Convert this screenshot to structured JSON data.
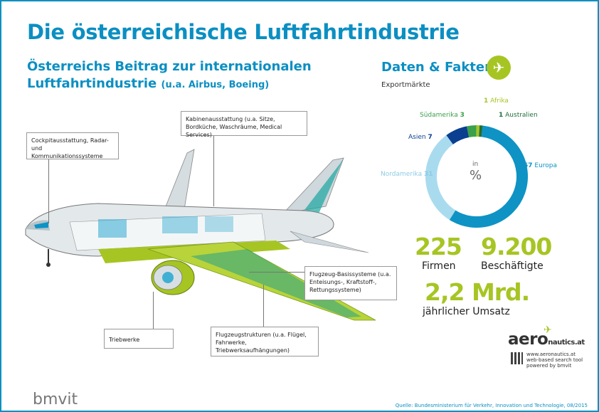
{
  "title": "Die österreichische Luftfahrtindustrie",
  "subtitle": {
    "line1": "Österreichs Beitrag zur internationalen",
    "line2": "Luftfahrtindustrie",
    "note": "(u.a. Airbus, Boeing)"
  },
  "callouts": {
    "kabine": "Kabinenausstattung (u.a. Sitze, Bordküche, Waschräume, Medical Services)",
    "cockpit": "Cockpitausstattung, Radar- und Kommunikationssysteme",
    "basis": "Flugzeug-Basissysteme (u.a. Enteisungs-, Kraftstoff-, Rettungssysteme)",
    "triebwerke": "Triebwerke",
    "strukturen": "Flugzeugstrukturen (u.a. Flügel, Fahrwerke, Triebwerksaufhängungen)"
  },
  "facts": {
    "title": "Daten & Fakten",
    "plane_icon": "plane-icon",
    "export_label": "Exportmärkte"
  },
  "chart_data": {
    "type": "pie",
    "center_label_top": "in",
    "center_label": "%",
    "segments": [
      {
        "name": "Europa",
        "value": 57,
        "color": "#0e93c4"
      },
      {
        "name": "Nordamerika",
        "value": 31,
        "color": "#a9dbef"
      },
      {
        "name": "Asien",
        "value": 7,
        "color": "#0b3f8f"
      },
      {
        "name": "Südamerika",
        "value": 3,
        "color": "#3aa04a"
      },
      {
        "name": "Afrika",
        "value": 1,
        "color": "#a6c523"
      },
      {
        "name": "Australien",
        "value": 1,
        "color": "#1f6e3a"
      }
    ]
  },
  "stats": {
    "firms_num": "225",
    "firms_label": "Firmen",
    "employees_num": "9.200",
    "employees_label": "Beschäftigte",
    "revenue_num": "2,2 Mrd.",
    "revenue_label": "jährlicher Umsatz"
  },
  "aero": {
    "logo_aero": "aero",
    "logo_rest": "nautics.at",
    "url_line1": "www.aeronautics.at",
    "url_line2": "web-based search tool",
    "url_line3": "powered by bmvit"
  },
  "footer": {
    "logo": "bmvit",
    "source": "Quelle: Bundesministerium für Verkehr, Innovation und Technologie, 08/2015"
  }
}
